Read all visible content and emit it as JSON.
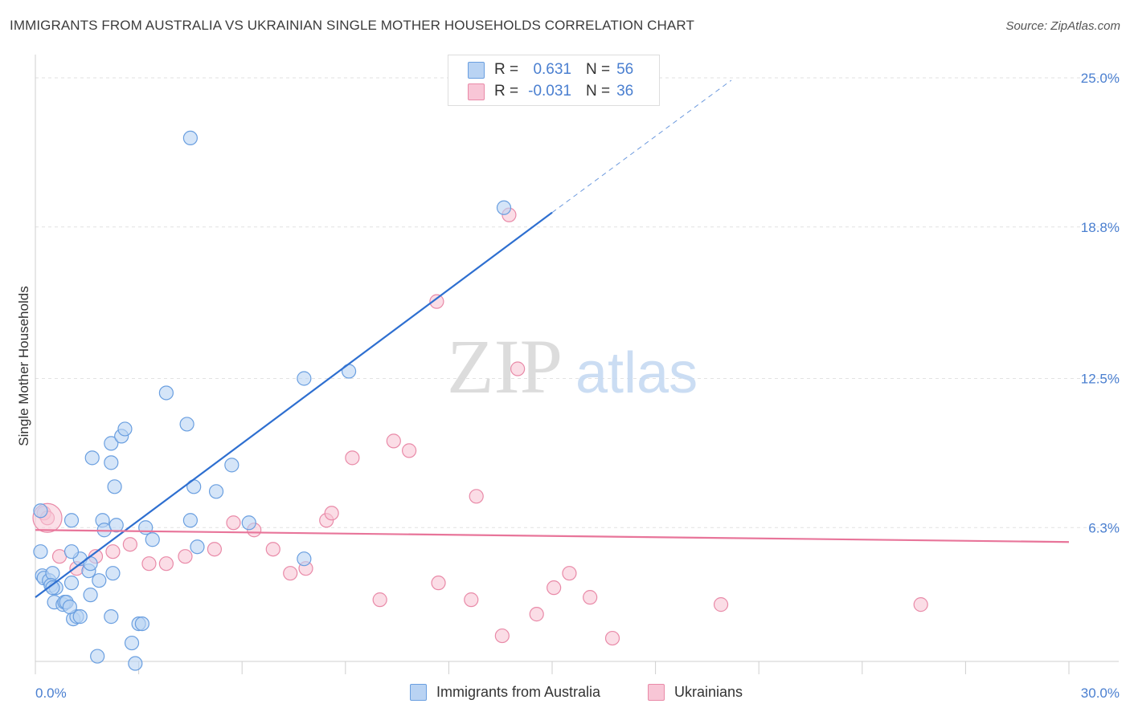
{
  "header": {
    "title": "IMMIGRANTS FROM AUSTRALIA VS UKRAINIAN SINGLE MOTHER HOUSEHOLDS CORRELATION CHART",
    "source": "Source: ZipAtlas.com"
  },
  "watermark": {
    "zip": "ZIP",
    "atlas": "atlas"
  },
  "legend_top": {
    "rows": [
      {
        "r_label": "R =",
        "r_value": "0.631",
        "n_label": "N =",
        "n_value": "56"
      },
      {
        "r_label": "R =",
        "r_value": "-0.031",
        "n_label": "N =",
        "n_value": "36"
      }
    ]
  },
  "legend_bottom": {
    "items": [
      "Immigrants from Australia",
      "Ukrainians"
    ]
  },
  "colors": {
    "blue_fill": "#b9d3f3",
    "blue_stroke": "#6a9fe0",
    "blue_line": "#2e6fd0",
    "pink_fill": "#f8c6d6",
    "pink_stroke": "#e98aa8",
    "pink_line": "#e8759a",
    "accent_text": "#4a7fd0"
  },
  "chart_data": {
    "type": "scatter",
    "title": "IMMIGRANTS FROM AUSTRALIA VS UKRAINIAN SINGLE MOTHER HOUSEHOLDS CORRELATION CHART",
    "xlabel": "",
    "ylabel": "Single Mother Households",
    "xlim": [
      0,
      30
    ],
    "ylim": [
      0,
      25.0
    ],
    "x_tick_labels": [
      "0.0%",
      "30.0%"
    ],
    "y_ticks": [
      6.3,
      12.5,
      18.8,
      25.0
    ],
    "y_tick_labels": [
      "6.3%",
      "12.5%",
      "18.8%",
      "25.0%"
    ],
    "grid": true,
    "legend": "top-center",
    "series": [
      {
        "name": "Immigrants from Australia",
        "r": 0.631,
        "n": 56,
        "trend": {
          "x0": 0.0,
          "y0": 3.4,
          "x1": 15.0,
          "y1": 19.4,
          "dashed_to_x": 20.2,
          "dashed_to_y": 24.9
        },
        "points": [
          [
            0.15,
            7.0
          ],
          [
            0.15,
            5.3
          ],
          [
            0.2,
            4.3
          ],
          [
            0.25,
            4.2
          ],
          [
            0.4,
            4.1
          ],
          [
            0.5,
            4.4
          ],
          [
            0.45,
            3.9
          ],
          [
            0.6,
            3.8
          ],
          [
            0.55,
            3.2
          ],
          [
            0.8,
            3.1
          ],
          [
            0.85,
            3.2
          ],
          [
            0.9,
            3.2
          ],
          [
            1.1,
            2.5
          ],
          [
            1.2,
            2.6
          ],
          [
            1.3,
            2.6
          ],
          [
            1.05,
            4.0
          ],
          [
            1.3,
            5.0
          ],
          [
            1.55,
            4.5
          ],
          [
            1.85,
            4.1
          ],
          [
            1.6,
            3.5
          ],
          [
            1.05,
            5.3
          ],
          [
            1.6,
            4.8
          ],
          [
            1.05,
            6.6
          ],
          [
            1.95,
            6.6
          ],
          [
            2.0,
            6.2
          ],
          [
            2.35,
            6.4
          ],
          [
            3.2,
            6.3
          ],
          [
            3.4,
            5.8
          ],
          [
            4.5,
            6.6
          ],
          [
            4.7,
            5.5
          ],
          [
            5.25,
            7.8
          ],
          [
            4.6,
            8.0
          ],
          [
            2.3,
            8.0
          ],
          [
            2.2,
            9.0
          ],
          [
            1.65,
            9.2
          ],
          [
            2.2,
            9.8
          ],
          [
            2.5,
            10.1
          ],
          [
            2.6,
            10.4
          ],
          [
            3.8,
            11.9
          ],
          [
            4.4,
            10.6
          ],
          [
            5.7,
            8.9
          ],
          [
            6.2,
            6.5
          ],
          [
            7.8,
            12.5
          ],
          [
            9.1,
            12.8
          ],
          [
            7.8,
            5.0
          ],
          [
            2.2,
            2.6
          ],
          [
            3.0,
            2.3
          ],
          [
            3.1,
            2.3
          ],
          [
            2.8,
            1.5
          ],
          [
            1.8,
            0.95
          ],
          [
            2.9,
            0.65
          ],
          [
            4.5,
            22.5
          ],
          [
            13.6,
            19.6
          ],
          [
            1.0,
            3.0
          ],
          [
            2.25,
            4.4
          ],
          [
            0.5,
            3.8
          ]
        ]
      },
      {
        "name": "Ukrainians",
        "r": -0.031,
        "n": 36,
        "trend": {
          "x0": 0.0,
          "y0": 6.2,
          "x1": 30.0,
          "y1": 5.7
        },
        "points": [
          [
            0.25,
            6.9
          ],
          [
            0.7,
            5.1
          ],
          [
            1.2,
            4.6
          ],
          [
            1.75,
            5.1
          ],
          [
            2.25,
            5.3
          ],
          [
            2.75,
            5.6
          ],
          [
            3.3,
            4.8
          ],
          [
            3.8,
            4.8
          ],
          [
            4.35,
            5.1
          ],
          [
            5.2,
            5.4
          ],
          [
            5.75,
            6.5
          ],
          [
            6.35,
            6.2
          ],
          [
            6.9,
            5.4
          ],
          [
            7.4,
            4.4
          ],
          [
            7.85,
            4.6
          ],
          [
            8.45,
            6.6
          ],
          [
            8.6,
            6.9
          ],
          [
            9.2,
            9.2
          ],
          [
            10.0,
            3.3
          ],
          [
            10.4,
            9.9
          ],
          [
            10.85,
            9.5
          ],
          [
            11.7,
            4.0
          ],
          [
            12.65,
            3.3
          ],
          [
            12.8,
            7.6
          ],
          [
            13.55,
            1.8
          ],
          [
            13.75,
            19.3
          ],
          [
            14.0,
            12.9
          ],
          [
            14.55,
            2.7
          ],
          [
            15.05,
            3.8
          ],
          [
            15.5,
            4.4
          ],
          [
            16.1,
            3.4
          ],
          [
            16.75,
            1.7
          ],
          [
            19.9,
            3.1
          ],
          [
            25.7,
            3.1
          ],
          [
            11.65,
            15.7
          ],
          [
            0.35,
            6.7
          ]
        ]
      }
    ]
  }
}
